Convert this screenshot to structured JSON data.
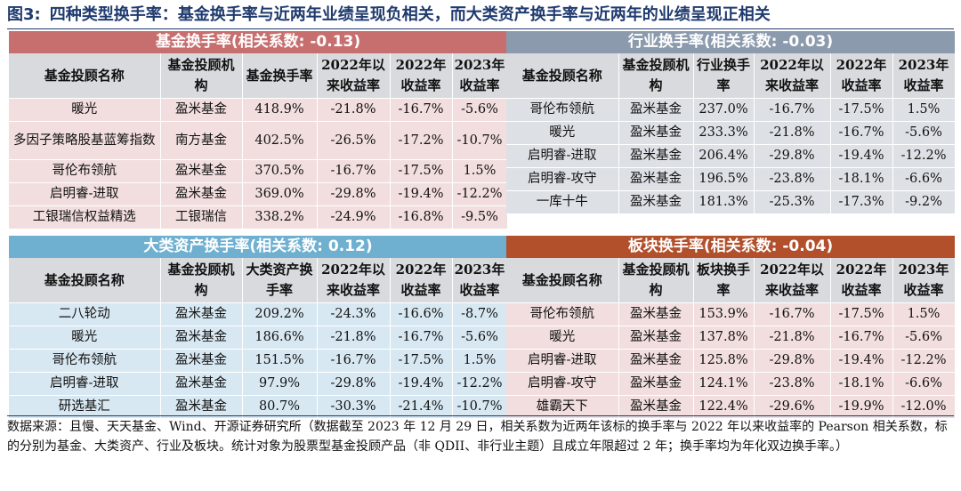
{
  "title": {
    "fig_label": "图3:",
    "text": "四种类型换手率：基金换手率与近两年业绩呈现负相关，而大类资产换手率与近两年的业绩呈现正相关"
  },
  "colors": {
    "title": "#1f3a6e",
    "fund_banner": "#c76f6f",
    "industry_banner": "#8c9aad",
    "asset_banner": "#6fb0d0",
    "sector_banner": "#b2502c"
  },
  "panels": {
    "fund": {
      "banner": "基金换手率(相关系数: -0.13)",
      "headers": [
        "基金投顾名称",
        "基金投顾机构",
        "基金换手率",
        "2022年以来收益率",
        "2022年收益率",
        "2023年收益率"
      ],
      "rows": [
        [
          "暖光",
          "盈米基金",
          "418.9%",
          "-21.8%",
          "-16.7%",
          "-5.6%"
        ],
        [
          "多因子策略股基蓝筹指数",
          "南方基金",
          "402.5%",
          "-26.5%",
          "-17.2%",
          "-10.7%"
        ],
        [
          "哥伦布领航",
          "盈米基金",
          "370.5%",
          "-16.7%",
          "-17.5%",
          "1.5%"
        ],
        [
          "启明睿-进取",
          "盈米基金",
          "369.0%",
          "-29.8%",
          "-19.4%",
          "-12.2%"
        ],
        [
          "工银瑞信权益精选",
          "工银瑞信",
          "338.2%",
          "-24.9%",
          "-16.8%",
          "-9.5%"
        ]
      ]
    },
    "industry": {
      "banner": "行业换手率(相关系数: -0.03)",
      "headers": [
        "基金投顾名称",
        "基金投顾机构",
        "行业换手率",
        "2022年以来收益率",
        "2022年收益率",
        "2023年收益率"
      ],
      "rows": [
        [
          "哥伦布领航",
          "盈米基金",
          "237.0%",
          "-16.7%",
          "-17.5%",
          "1.5%"
        ],
        [
          "暖光",
          "盈米基金",
          "233.3%",
          "-21.8%",
          "-16.7%",
          "-5.6%"
        ],
        [
          "启明睿-进取",
          "盈米基金",
          "206.4%",
          "-29.8%",
          "-19.4%",
          "-12.2%"
        ],
        [
          "启明睿-攻守",
          "盈米基金",
          "196.5%",
          "-23.8%",
          "-18.1%",
          "-6.6%"
        ],
        [
          "一库十牛",
          "盈米基金",
          "181.3%",
          "-25.3%",
          "-17.3%",
          "-9.2%"
        ]
      ]
    },
    "asset": {
      "banner": "大类资产换手率(相关系数: 0.12)",
      "headers": [
        "基金投顾名称",
        "基金投顾机构",
        "大类资产换手率",
        "2022年以来收益率",
        "2022年收益率",
        "2023年收益率"
      ],
      "rows": [
        [
          "二八轮动",
          "盈米基金",
          "209.2%",
          "-24.3%",
          "-16.6%",
          "-8.7%"
        ],
        [
          "暖光",
          "盈米基金",
          "186.6%",
          "-21.8%",
          "-16.7%",
          "-5.6%"
        ],
        [
          "哥伦布领航",
          "盈米基金",
          "151.5%",
          "-16.7%",
          "-17.5%",
          "1.5%"
        ],
        [
          "启明睿-进取",
          "盈米基金",
          "97.9%",
          "-29.8%",
          "-19.4%",
          "-12.2%"
        ],
        [
          "研选基汇",
          "盈米基金",
          "80.7%",
          "-30.3%",
          "-21.4%",
          "-10.7%"
        ]
      ]
    },
    "sector": {
      "banner": "板块换手率(相关系数: -0.04)",
      "headers": [
        "基金投顾名称",
        "基金投顾机构",
        "板块换手率",
        "2022年以来收益率",
        "2022年收益率",
        "2023年收益率"
      ],
      "rows": [
        [
          "哥伦布领航",
          "盈米基金",
          "153.9%",
          "-16.7%",
          "-17.5%",
          "1.5%"
        ],
        [
          "暖光",
          "盈米基金",
          "137.8%",
          "-21.8%",
          "-16.7%",
          "-5.6%"
        ],
        [
          "启明睿-进取",
          "盈米基金",
          "125.8%",
          "-29.8%",
          "-19.4%",
          "-12.2%"
        ],
        [
          "启明睿-攻守",
          "盈米基金",
          "124.1%",
          "-23.8%",
          "-18.1%",
          "-6.6%"
        ],
        [
          "雄霸天下",
          "盈米基金",
          "122.4%",
          "-29.6%",
          "-19.9%",
          "-12.0%"
        ]
      ]
    }
  },
  "footnote": "数据来源：且慢、天天基金、Wind、开源证券研究所（数据截至 2023 年 12 月 29 日，相关系数为近两年该标的换手率与 2022 年以来收益率的 Pearson 相关系数，标的分别为基金、大类资产、行业及板块。统计对象为股票型基金投顾产品（非 QDII、非行业主题）且成立年限超过 2 年；换手率均为年化双边换手率。）"
}
